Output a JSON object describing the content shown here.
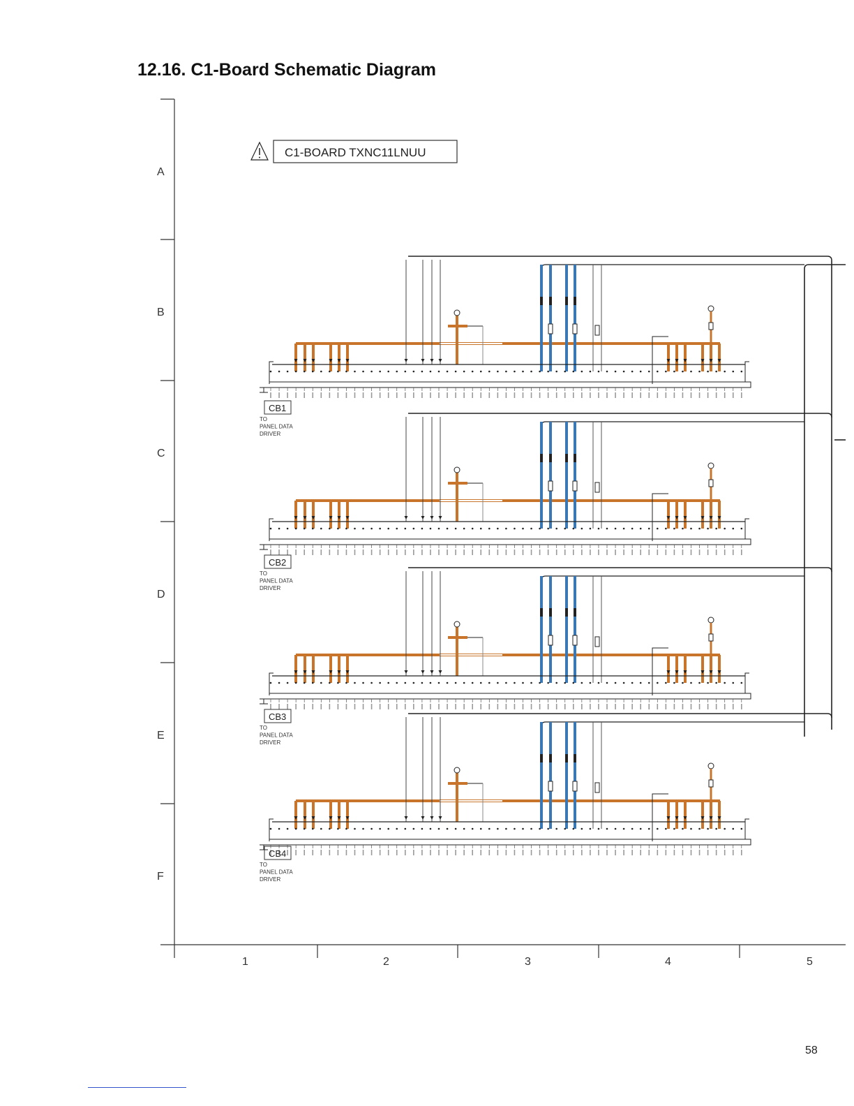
{
  "title": "12.16. C1-Board Schematic Diagram",
  "board_label": "C1-BOARD TXNC11LNUU",
  "rows": [
    "A",
    "B",
    "C",
    "D",
    "E",
    "F"
  ],
  "columns": [
    "1",
    "2",
    "3",
    "4",
    "5"
  ],
  "page_number": "58",
  "connectors": [
    {
      "name": "CB1",
      "dest_line1": "TO",
      "dest_line2": "PANEL DATA",
      "dest_line3": "DRIVER"
    },
    {
      "name": "CB2",
      "dest_line1": "TO",
      "dest_line2": "PANEL DATA",
      "dest_line3": "DRIVER"
    },
    {
      "name": "CB3",
      "dest_line1": "TO",
      "dest_line2": "PANEL DATA",
      "dest_line3": "DRIVER"
    },
    {
      "name": "CB4",
      "dest_line1": "TO",
      "dest_line2": "PANEL DATA",
      "dest_line3": "DRIVER"
    }
  ],
  "colors": {
    "power_bus": "#c8742a",
    "signal_bus": "#3a78b5",
    "wire": "#222222"
  }
}
